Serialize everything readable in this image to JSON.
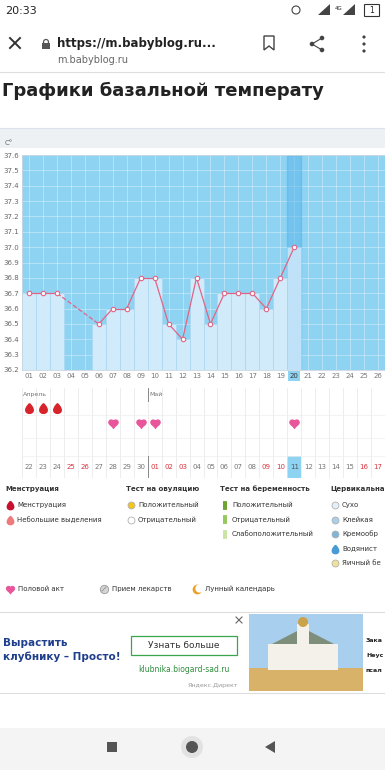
{
  "screen": {
    "status_bar": {
      "time": "20:33",
      "network": "4G",
      "notifications": "1"
    },
    "browser": {
      "url": "https://m.babyblog.ru...",
      "domain": "m.babyblog.ru"
    },
    "page_title": "Графики базальной температу",
    "calendar": {
      "selected_day": "20",
      "menstruation_days": [
        "01",
        "02",
        "03"
      ],
      "intercourse_days": [
        "07",
        "09",
        "10",
        "20"
      ],
      "months": [
        {
          "label": "Апрель",
          "start": "22"
        },
        {
          "label": "Май",
          "start": "01"
        }
      ],
      "dates": [
        "22",
        "23",
        "24",
        "25",
        "26",
        "27",
        "28",
        "29",
        "30",
        "01",
        "02",
        "03",
        "04",
        "05",
        "06",
        "07",
        "08",
        "09",
        "10",
        "11",
        "12",
        "13",
        "14",
        "15",
        "16",
        "17"
      ],
      "date_colors": [
        "#777777",
        "#777777",
        "#777777",
        "#d9343f",
        "#d9343f",
        "#777777",
        "#777777",
        "#777777",
        "#777777",
        "#d9343f",
        "#d9343f",
        "#d9343f",
        "#777777",
        "#777777",
        "#777777",
        "#777777",
        "#777777",
        "#d9343f",
        "#d9343f",
        "#555555",
        "#777777",
        "#777777",
        "#777777",
        "#777777",
        "#d9343f",
        "#d9343f"
      ],
      "selected_date": "11"
    },
    "legend": {
      "groups": [
        {
          "title": "Менструация",
          "items": [
            "Менструация",
            "Небольшие выделения"
          ]
        },
        {
          "title": "Тест на овуляцию",
          "items": [
            "Положительный",
            "Отрицательный"
          ]
        },
        {
          "title": "Тест на беременность",
          "items": [
            "Положительный",
            "Отрицательный",
            "Слабоположительный"
          ]
        },
        {
          "title": "Цервикальна",
          "items": [
            "Сухо",
            "Клейкая",
            "Кремообр",
            "Водянист",
            "Яичный бе"
          ]
        }
      ],
      "other": [
        "Половой акт",
        "Прием лекарств",
        "Лунный календарь"
      ]
    },
    "ad": {
      "headline": "Вырастить\nклубнику – Просто!",
      "button": "Узнать больше",
      "site": "klubnika.biogard-sad.ru",
      "network": "Яндекс.Директ",
      "side_texts": [
        "Зака",
        "Неус",
        "псал"
      ]
    }
  },
  "chart_data": {
    "type": "line",
    "y_label": "C°",
    "categories": [
      "01",
      "02",
      "03",
      "04",
      "05",
      "06",
      "07",
      "08",
      "09",
      "10",
      "11",
      "12",
      "13",
      "14",
      "15",
      "16",
      "17",
      "18",
      "19",
      "20",
      "21",
      "22",
      "23",
      "24",
      "25",
      "26"
    ],
    "values": [
      36.7,
      36.7,
      36.7,
      null,
      null,
      36.5,
      36.6,
      36.6,
      36.8,
      36.8,
      36.5,
      36.4,
      36.8,
      36.5,
      36.7,
      36.7,
      36.7,
      36.6,
      36.8,
      37.0,
      null,
      null,
      null,
      null,
      null,
      null
    ],
    "color": "#e06585",
    "marker": "circle",
    "ylim": [
      36.2,
      37.6
    ],
    "yticks": [
      36.2,
      36.3,
      36.4,
      36.5,
      36.6,
      36.7,
      36.8,
      36.9,
      37.0,
      37.1,
      37.2,
      37.3,
      37.4,
      37.5,
      37.6
    ],
    "grid": true
  }
}
